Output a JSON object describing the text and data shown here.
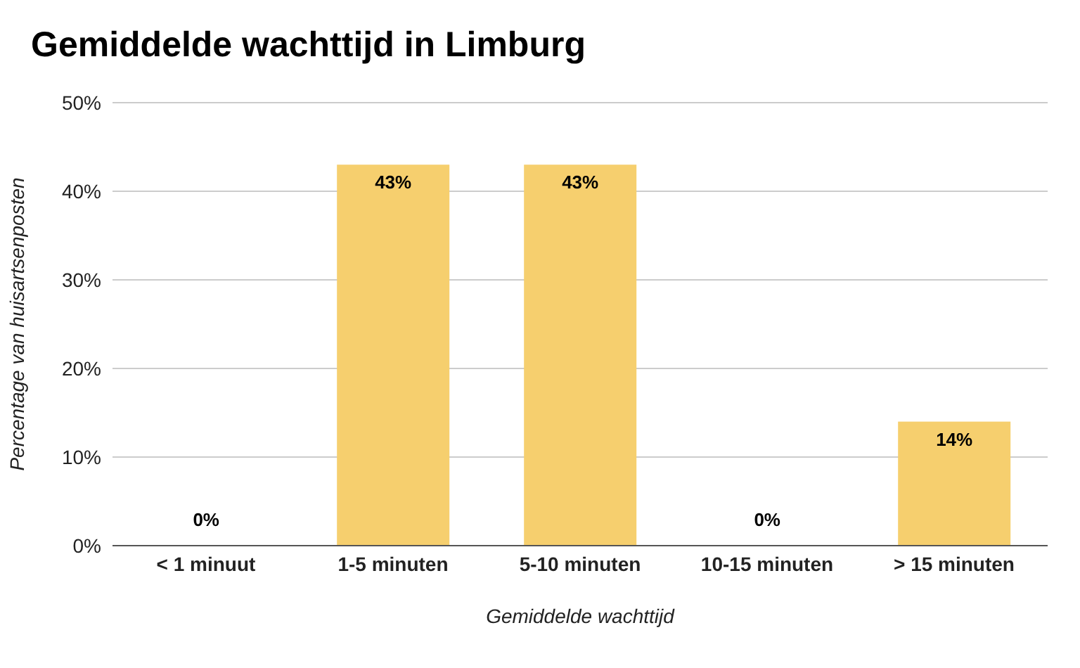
{
  "chart_data": {
    "type": "bar",
    "title": "Gemiddelde wachttijd in Limburg",
    "xlabel": "Gemiddelde wachttijd",
    "ylabel": "Percentage van huisartsenposten",
    "categories": [
      "< 1 minuut",
      "1-5 minuten",
      "5-10 minuten",
      "10-15 minuten",
      "> 15 minuten"
    ],
    "values": [
      0,
      43,
      43,
      0,
      14
    ],
    "color": "#f6cf6e",
    "value_labels": [
      "0%",
      "43%",
      "43%",
      "0%",
      "14%"
    ],
    "ylim": [
      0,
      50
    ],
    "yticks": [
      {
        "value": 0,
        "label": "0%"
      },
      {
        "value": 10,
        "label": "10%"
      },
      {
        "value": 20,
        "label": "20%"
      },
      {
        "value": 30,
        "label": "30%"
      },
      {
        "value": 40,
        "label": "40%"
      },
      {
        "value": 50,
        "label": "50%"
      }
    ],
    "grid": "y"
  }
}
